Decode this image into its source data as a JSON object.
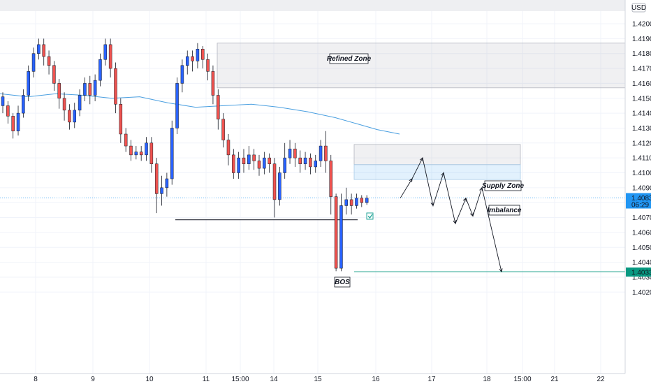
{
  "chart_data": {
    "type": "candlestick",
    "currency": "USD",
    "y_axis": {
      "min": 1.402,
      "max": 1.4205,
      "tick_labels": [
        "1.42000",
        "1.41900",
        "1.41800",
        "1.41700",
        "1.41600",
        "1.41500",
        "1.41400",
        "1.41300",
        "1.41200",
        "1.41100",
        "1.41000",
        "1.40900",
        "1.40800",
        "1.40700",
        "1.40600",
        "1.40500",
        "1.40400",
        "1.40300",
        "1.40200"
      ]
    },
    "x_axis": {
      "tick_labels": [
        "8",
        "9",
        "10",
        "11",
        "15:00",
        "14",
        "15",
        "16",
        "17",
        "18",
        "15:00",
        "21",
        "22"
      ]
    },
    "last_price": {
      "label": "1.40831",
      "countdown": "06:29",
      "value": 1.40831
    },
    "target_price": {
      "label": "1.40336",
      "value": 1.40336
    },
    "ma_line": {
      "color": "#4a9fe0",
      "points": [
        [
          0,
          1.4153
        ],
        [
          40,
          1.4151
        ],
        [
          80,
          1.4153
        ],
        [
          120,
          1.4152
        ],
        [
          160,
          1.415
        ],
        [
          200,
          1.4151
        ],
        [
          240,
          1.4147
        ],
        [
          280,
          1.4144
        ],
        [
          320,
          1.4145
        ],
        [
          360,
          1.4146
        ],
        [
          400,
          1.4144
        ],
        [
          440,
          1.4141
        ],
        [
          480,
          1.4137
        ],
        [
          510,
          1.4133
        ],
        [
          540,
          1.4129
        ],
        [
          572,
          1.4126
        ]
      ]
    },
    "annotations": [
      {
        "label": "Refined Zone",
        "price_top": 1.4187,
        "price_bottom": 1.4157
      },
      {
        "label": "Supply Zone",
        "price_top": 1.4119,
        "price_bottom": 1.41055
      },
      {
        "label": "Imbalance",
        "price_top": 1.41055,
        "price_bottom": 1.40955
      },
      {
        "label": "BOS",
        "price": 1.40685
      }
    ],
    "projection_path": [
      [
        573,
        1.4083
      ],
      [
        590,
        1.4096
      ],
      [
        605,
        1.411
      ],
      [
        620,
        1.4078
      ],
      [
        635,
        1.41
      ],
      [
        652,
        1.4066
      ],
      [
        667,
        1.4083
      ],
      [
        677,
        1.4071
      ],
      [
        690,
        1.409
      ],
      [
        718,
        1.40336
      ]
    ],
    "candles": [
      [
        1.4145,
        1.4151,
        1.414,
        1.4154
      ],
      [
        1.4145,
        1.4138,
        1.4133,
        1.4148
      ],
      [
        1.4138,
        1.4128,
        1.4123,
        1.414
      ],
      [
        1.4128,
        1.414,
        1.4125,
        1.4145
      ],
      [
        1.414,
        1.4152,
        1.4137,
        1.4156
      ],
      [
        1.4152,
        1.4168,
        1.4148,
        1.4172
      ],
      [
        1.4168,
        1.418,
        1.4164,
        1.4184
      ],
      [
        1.418,
        1.4186,
        1.4176,
        1.419
      ],
      [
        1.4186,
        1.4178,
        1.4172,
        1.419
      ],
      [
        1.4178,
        1.4172,
        1.4166,
        1.4182
      ],
      [
        1.4172,
        1.416,
        1.4155,
        1.4175
      ],
      [
        1.416,
        1.415,
        1.4143,
        1.4163
      ],
      [
        1.415,
        1.4142,
        1.4135,
        1.4154
      ],
      [
        1.4142,
        1.4134,
        1.4129,
        1.4146
      ],
      [
        1.4134,
        1.4142,
        1.413,
        1.4147
      ],
      [
        1.4142,
        1.4152,
        1.4138,
        1.4156
      ],
      [
        1.4152,
        1.416,
        1.4148,
        1.4164
      ],
      [
        1.416,
        1.4152,
        1.4146,
        1.4165
      ],
      [
        1.4152,
        1.4162,
        1.4148,
        1.4166
      ],
      [
        1.4162,
        1.4176,
        1.4158,
        1.418
      ],
      [
        1.4176,
        1.4186,
        1.4172,
        1.419
      ],
      [
        1.4186,
        1.417,
        1.4164,
        1.419
      ],
      [
        1.417,
        1.4146,
        1.414,
        1.4174
      ],
      [
        1.4146,
        1.4126,
        1.412,
        1.415
      ],
      [
        1.4126,
        1.4118,
        1.4114,
        1.413
      ],
      [
        1.4118,
        1.4112,
        1.4108,
        1.4122
      ],
      [
        1.4112,
        1.4114,
        1.4109,
        1.4118
      ],
      [
        1.4114,
        1.4112,
        1.4108,
        1.4118
      ],
      [
        1.4112,
        1.412,
        1.4108,
        1.4124
      ],
      [
        1.412,
        1.4106,
        1.41,
        1.4124
      ],
      [
        1.4106,
        1.4086,
        1.4073,
        1.411
      ],
      [
        1.4086,
        1.409,
        1.4078,
        1.4098
      ],
      [
        1.409,
        1.4096,
        1.4084,
        1.41
      ],
      [
        1.4096,
        1.413,
        1.4092,
        1.4135
      ],
      [
        1.413,
        1.416,
        1.4126,
        1.4164
      ],
      [
        1.416,
        1.4172,
        1.4154,
        1.4176
      ],
      [
        1.4172,
        1.4178,
        1.4166,
        1.4182
      ],
      [
        1.4178,
        1.4175,
        1.4168,
        1.4182
      ],
      [
        1.4175,
        1.4183,
        1.417,
        1.4187
      ],
      [
        1.4183,
        1.4176,
        1.417,
        1.4185
      ],
      [
        1.4176,
        1.4168,
        1.4162,
        1.418
      ],
      [
        1.4168,
        1.4152,
        1.4146,
        1.4172
      ],
      [
        1.4152,
        1.4136,
        1.4129,
        1.4156
      ],
      [
        1.4136,
        1.4122,
        1.4117,
        1.414
      ],
      [
        1.4122,
        1.4112,
        1.4105,
        1.4126
      ],
      [
        1.4112,
        1.41,
        1.4096,
        1.4116
      ],
      [
        1.41,
        1.411,
        1.4096,
        1.4114
      ],
      [
        1.411,
        1.4106,
        1.41,
        1.4116
      ],
      [
        1.4106,
        1.4112,
        1.4102,
        1.4118
      ],
      [
        1.4112,
        1.4108,
        1.4102,
        1.4116
      ],
      [
        1.4108,
        1.4103,
        1.4098,
        1.4112
      ],
      [
        1.4103,
        1.411,
        1.4099,
        1.4114
      ],
      [
        1.411,
        1.4106,
        1.41,
        1.4113
      ],
      [
        1.4106,
        1.4082,
        1.407,
        1.411
      ],
      [
        1.4082,
        1.41,
        1.4078,
        1.4104
      ],
      [
        1.41,
        1.411,
        1.4096,
        1.412
      ],
      [
        1.411,
        1.4116,
        1.4106,
        1.4122
      ],
      [
        1.4116,
        1.411,
        1.4104,
        1.412
      ],
      [
        1.411,
        1.4106,
        1.41,
        1.4115
      ],
      [
        1.4106,
        1.411,
        1.4102,
        1.4114
      ],
      [
        1.411,
        1.4104,
        1.4099,
        1.4113
      ],
      [
        1.4104,
        1.4108,
        1.41,
        1.4112
      ],
      [
        1.4108,
        1.4118,
        1.4104,
        1.4122
      ],
      [
        1.4118,
        1.4108,
        1.41,
        1.4128
      ],
      [
        1.4108,
        1.4084,
        1.4072,
        1.4112
      ],
      [
        1.4084,
        1.4036,
        1.4034,
        1.4086
      ],
      [
        1.4036,
        1.4078,
        1.4034,
        1.4086
      ],
      [
        1.4078,
        1.4082,
        1.4072,
        1.409
      ],
      [
        1.4082,
        1.4078,
        1.4072,
        1.4086
      ],
      [
        1.4078,
        1.4083,
        1.4076,
        1.4086
      ],
      [
        1.4083,
        1.408,
        1.4077,
        1.4085
      ],
      [
        1.408,
        1.4083,
        1.40785,
        1.4085
      ]
    ]
  }
}
